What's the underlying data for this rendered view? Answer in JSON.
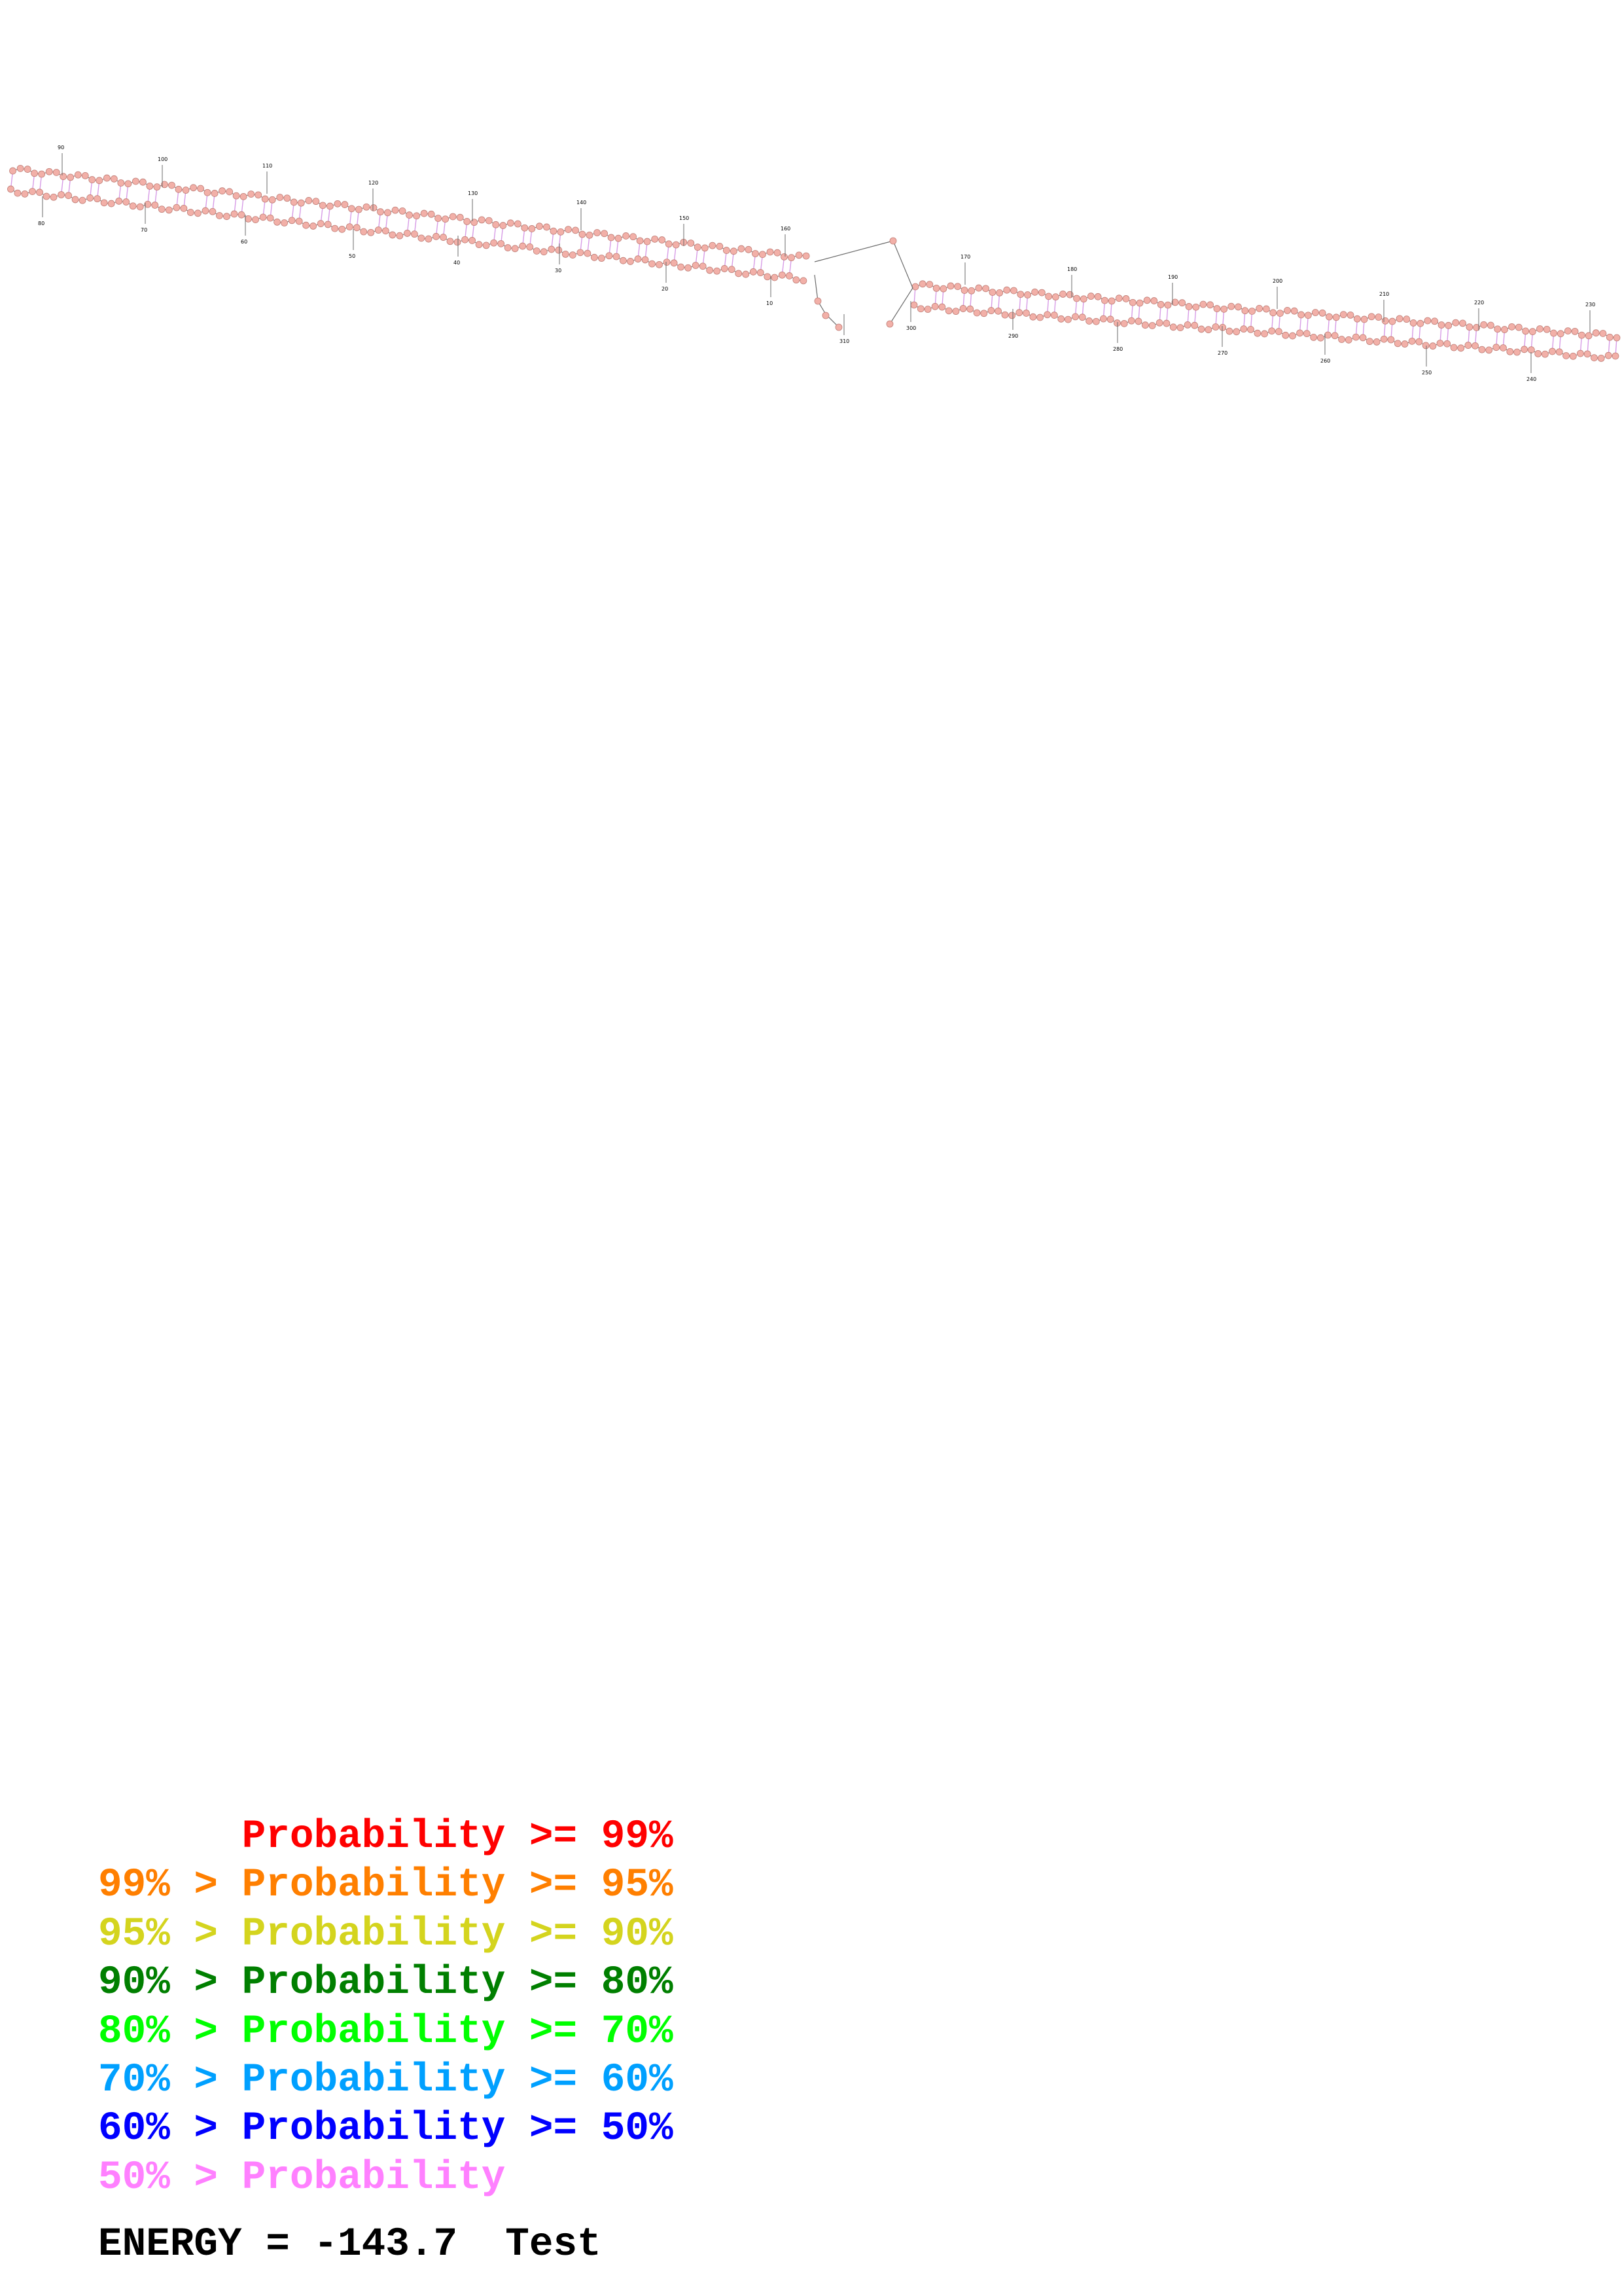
{
  "diagram": {
    "type": "rna-secondary-structure",
    "position_labels": [
      "10",
      "20",
      "30",
      "40",
      "50",
      "60",
      "70",
      "80",
      "90",
      "100",
      "110",
      "120",
      "130",
      "140",
      "150",
      "160",
      "170",
      "180",
      "190",
      "200",
      "210",
      "220",
      "230",
      "240",
      "250",
      "260",
      "270",
      "280",
      "290",
      "300",
      "310"
    ],
    "colors": {
      "base": "#f2b0a8",
      "base_stroke": "#c07f78",
      "pair": "#d79be6",
      "backbone": "#6b6b6b"
    }
  },
  "legend": {
    "rows": [
      {
        "prefix": "    ",
        "label": "Probability",
        "suffix": " >= 99%",
        "color": "#ff0000"
      },
      {
        "prefix": "99% > ",
        "label": "Probability",
        "suffix": " >= 95%",
        "color": "#ff7f00"
      },
      {
        "prefix": "95% > ",
        "label": "Probability",
        "suffix": " >= 90%",
        "color": "#d4d41e"
      },
      {
        "prefix": "90% > ",
        "label": "Probability",
        "suffix": " >= 80%",
        "color": "#007f00"
      },
      {
        "prefix": "80% > ",
        "label": "Probability",
        "suffix": " >= 70%",
        "color": "#00ff00"
      },
      {
        "prefix": "70% > ",
        "label": "Probability",
        "suffix": " >= 60%",
        "color": "#00a0ff"
      },
      {
        "prefix": "60% > ",
        "label": "Probability",
        "suffix": " >= 50%",
        "color": "#0000ff"
      },
      {
        "prefix": "50% > ",
        "label": "Probability",
        "suffix": "",
        "color": "#ff80ff"
      }
    ]
  },
  "energy": {
    "text": "ENERGY = -143.7  Test"
  }
}
